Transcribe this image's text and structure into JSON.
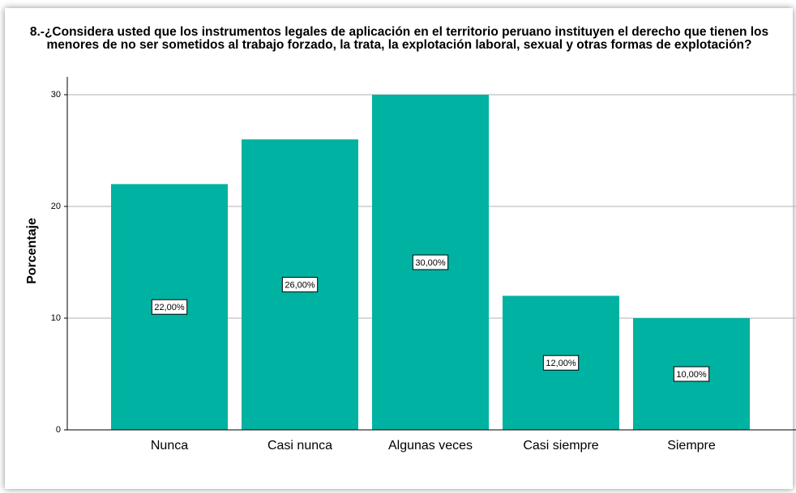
{
  "chart_data": {
    "type": "bar",
    "title": "8.-¿Considera usted que los instrumentos legales de aplicación en el territorio peruano instituyen el derecho que tienen los menores de no ser sometidos al trabajo forzado, la trata, la explotación laboral, sexual y otras formas de explotación?",
    "y_label": "Porcentaje",
    "categories": [
      "Nunca",
      "Casi nunca",
      "Algunas veces",
      "Casi siempre",
      "Siempre"
    ],
    "values": [
      22,
      26,
      30,
      12,
      10
    ],
    "value_labels": [
      "22,00%",
      "26,00%",
      "30,00%",
      "12,00%",
      "10,00%"
    ],
    "color": "#00b2a1",
    "ylim": [
      0,
      30
    ],
    "yticks": [
      0,
      10,
      20,
      30
    ],
    "grid": true
  }
}
